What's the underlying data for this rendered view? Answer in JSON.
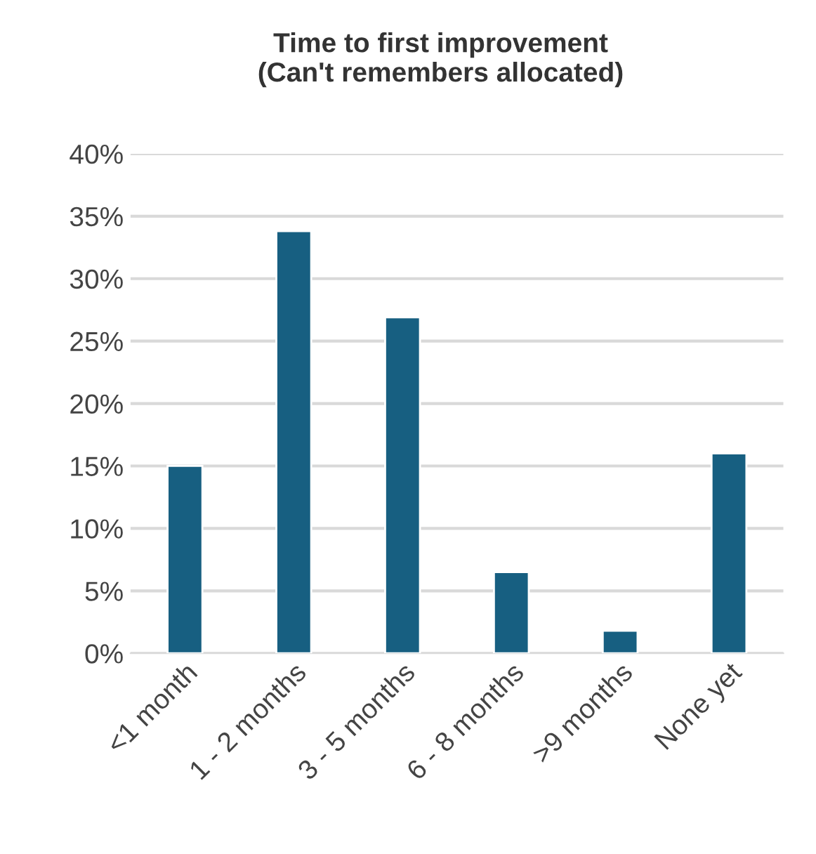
{
  "chart_data": {
    "type": "bar",
    "title": "Time to first improvement\n(Can't remembers allocated)",
    "categories": [
      "<1 month",
      "1 - 2 months",
      "3 - 5 months",
      "6 - 8 months",
      ">9 months",
      "None yet"
    ],
    "values": [
      15,
      33.8,
      26.9,
      6.5,
      1.8,
      16
    ],
    "color": "#175f81",
    "ylim": [
      0,
      40
    ],
    "yticks": [
      {
        "value": 0,
        "label": "0%"
      },
      {
        "value": 5,
        "label": "5%"
      },
      {
        "value": 10,
        "label": "10%"
      },
      {
        "value": 15,
        "label": "15%"
      },
      {
        "value": 20,
        "label": "20%"
      },
      {
        "value": 25,
        "label": "25%"
      },
      {
        "value": 30,
        "label": "30%"
      },
      {
        "value": 35,
        "label": "35%"
      },
      {
        "value": 40,
        "label": "40%"
      }
    ],
    "grid": "y",
    "legend": false
  }
}
